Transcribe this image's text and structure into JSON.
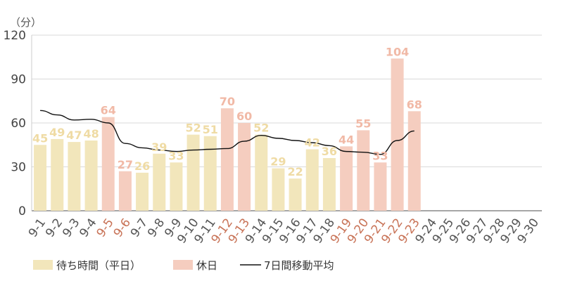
{
  "chart_data": {
    "type": "bar",
    "ylabel": "（分）",
    "ylim": [
      0,
      120
    ],
    "yticks": [
      0,
      30,
      60,
      90,
      120
    ],
    "grid": true,
    "legend_position": "bottom-left",
    "colors": {
      "weekday": "#f2e6bb",
      "holiday": "#f5cdbf",
      "weekday_label": "#efdba4",
      "holiday_label": "#f1b9a6",
      "weekday_tick": "#555555",
      "holiday_tick": "#c87357",
      "line": "#111111",
      "grid": "#d9d9d9"
    },
    "categories": [
      "9-1",
      "9-2",
      "9-3",
      "9-4",
      "9-5",
      "9-6",
      "9-7",
      "9-8",
      "9-9",
      "9-10",
      "9-11",
      "9-12",
      "9-13",
      "9-14",
      "9-15",
      "9-16",
      "9-17",
      "9-18",
      "9-19",
      "9-20",
      "9-21",
      "9-22",
      "9-23",
      "9-24",
      "9-25",
      "9-26",
      "9-27",
      "9-28",
      "9-29",
      "9-30"
    ],
    "holidays": [
      "9-5",
      "9-6",
      "9-12",
      "9-13",
      "9-19",
      "9-20",
      "9-21",
      "9-22",
      "9-23"
    ],
    "series": [
      {
        "name": "待ち時間（平日）",
        "kind": "bar",
        "values": [
          45,
          49,
          47,
          48,
          null,
          null,
          26,
          39,
          33,
          52,
          51,
          null,
          null,
          52,
          29,
          22,
          42,
          36,
          null,
          null,
          null,
          null,
          null,
          null,
          null,
          null,
          null,
          null,
          null,
          null
        ]
      },
      {
        "name": "休日",
        "kind": "bar",
        "values": [
          null,
          null,
          null,
          null,
          64,
          27,
          null,
          null,
          null,
          null,
          null,
          70,
          60,
          null,
          null,
          null,
          null,
          null,
          44,
          55,
          33,
          104,
          68,
          null,
          null,
          null,
          null,
          null,
          null,
          null
        ]
      },
      {
        "name": "7日間移動平均",
        "kind": "line",
        "values": [
          68.5,
          65.5,
          62,
          62.5,
          60,
          46,
          43,
          41.5,
          40.5,
          41.5,
          42,
          42.5,
          47.5,
          51.5,
          49.5,
          48,
          46.5,
          44.5,
          40.5,
          40,
          38.5,
          48,
          54.5,
          null,
          null,
          null,
          null,
          null,
          null,
          null
        ]
      }
    ]
  }
}
